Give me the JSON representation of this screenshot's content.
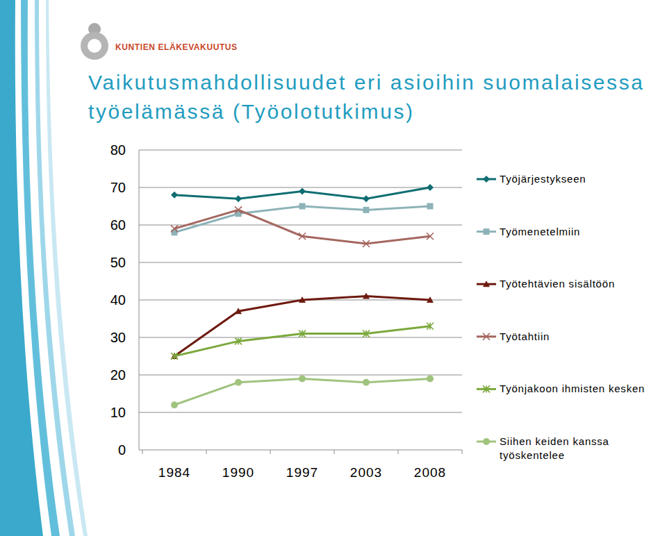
{
  "header": {
    "logo": "KUNTIEN ELÄKEVAKUUTUS"
  },
  "chart_data": {
    "type": "line",
    "title": "Vaikutusmahdollisuudet eri asioihin suomalaisessa työelämässä (Työolotutkimus)",
    "categories": [
      "1984",
      "1990",
      "1997",
      "2003",
      "2008"
    ],
    "series": [
      {
        "name": "Työjärjestykseen",
        "color": "#0f6e72",
        "marker": "diamond",
        "values": [
          68,
          67,
          69,
          67,
          70
        ]
      },
      {
        "name": "Työmenetelmiin",
        "color": "#8db3b8",
        "marker": "square",
        "values": [
          58,
          63,
          65,
          64,
          65
        ]
      },
      {
        "name": "Työtehtävien sisältöön",
        "color": "#6e1a10",
        "marker": "triangle",
        "values": [
          25,
          37,
          40,
          41,
          40
        ]
      },
      {
        "name": "Työtahtiin",
        "color": "#a4675f",
        "marker": "x",
        "values": [
          59,
          64,
          57,
          55,
          57
        ]
      },
      {
        "name": "Työnjakoon ihmisten kesken",
        "color": "#7ba83c",
        "marker": "star",
        "values": [
          25,
          29,
          31,
          31,
          33
        ]
      },
      {
        "name": "Siihen keiden kanssa työskentelee",
        "color": "#a0c37e",
        "marker": "circle",
        "values": [
          12,
          18,
          19,
          18,
          19
        ]
      }
    ],
    "ylim": [
      0,
      80
    ],
    "yticks": [
      0,
      10,
      20,
      30,
      40,
      50,
      60,
      70,
      80
    ],
    "grid": true,
    "legend": "right"
  }
}
